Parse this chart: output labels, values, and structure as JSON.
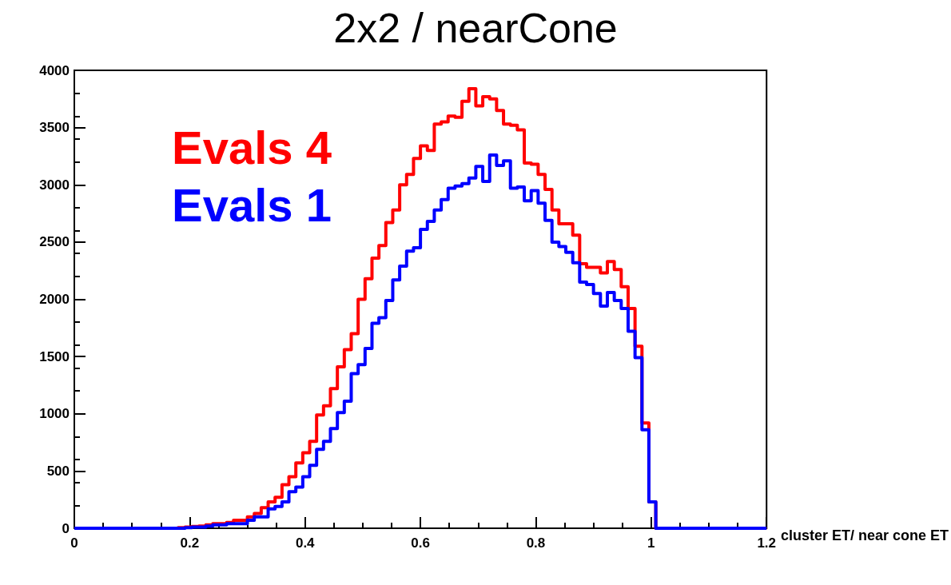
{
  "chart_data": {
    "type": "histogram",
    "title": "2x2 / nearCone",
    "xlabel": "cluster ET/ near cone ET",
    "bins": [
      0,
      0.012,
      0.024,
      0.036,
      0.048,
      0.06,
      0.072,
      0.084,
      0.096,
      0.108,
      0.12,
      0.132,
      0.144,
      0.156,
      0.168,
      0.18,
      0.192,
      0.204,
      0.216,
      0.228,
      0.24,
      0.252,
      0.264,
      0.276,
      0.288,
      0.3,
      0.312,
      0.324,
      0.336,
      0.348,
      0.36,
      0.372,
      0.384,
      0.396,
      0.408,
      0.42,
      0.432,
      0.444,
      0.456,
      0.468,
      0.48,
      0.492,
      0.504,
      0.516,
      0.528,
      0.54,
      0.552,
      0.564,
      0.576,
      0.588,
      0.6,
      0.612,
      0.624,
      0.636,
      0.648,
      0.66,
      0.672,
      0.684,
      0.696,
      0.708,
      0.72,
      0.732,
      0.744,
      0.756,
      0.768,
      0.78,
      0.792,
      0.804,
      0.816,
      0.828,
      0.84,
      0.852,
      0.864,
      0.876,
      0.888,
      0.9,
      0.912,
      0.924,
      0.936,
      0.948,
      0.96,
      0.972,
      0.984,
      0.996,
      1.008,
      1.02,
      1.032,
      1.044,
      1.056,
      1.068,
      1.08,
      1.092,
      1.104,
      1.116,
      1.128,
      1.14,
      1.152,
      1.164,
      1.176,
      1.188,
      1.2
    ],
    "series": [
      {
        "name": "Evals 4",
        "color": "#ff0000",
        "values": [
          0,
          0,
          0,
          0,
          0,
          0,
          0,
          0,
          0,
          0,
          0,
          0,
          0,
          0,
          0,
          5,
          10,
          15,
          20,
          30,
          40,
          40,
          50,
          70,
          70,
          100,
          130,
          180,
          230,
          270,
          380,
          450,
          570,
          660,
          760,
          990,
          1070,
          1220,
          1410,
          1560,
          1700,
          2000,
          2180,
          2360,
          2470,
          2670,
          2780,
          3000,
          3090,
          3230,
          3340,
          3300,
          3530,
          3550,
          3600,
          3590,
          3730,
          3840,
          3690,
          3770,
          3750,
          3650,
          3530,
          3520,
          3480,
          3190,
          3180,
          3090,
          2960,
          2780,
          2660,
          2660,
          2560,
          2310,
          2280,
          2280,
          2230,
          2330,
          2260,
          2110,
          1920,
          1590,
          920,
          230,
          0,
          0,
          0,
          0,
          0,
          0,
          0,
          0,
          0,
          0,
          0,
          0,
          0,
          0,
          0,
          0
        ]
      },
      {
        "name": "Evals 1",
        "color": "#0000ff",
        "values": [
          0,
          0,
          0,
          0,
          0,
          0,
          0,
          0,
          0,
          0,
          0,
          0,
          0,
          0,
          0,
          0,
          5,
          10,
          10,
          20,
          30,
          30,
          40,
          40,
          40,
          70,
          100,
          100,
          170,
          190,
          230,
          320,
          360,
          450,
          550,
          690,
          760,
          870,
          1010,
          1110,
          1350,
          1430,
          1570,
          1790,
          1840,
          1990,
          2170,
          2290,
          2420,
          2450,
          2610,
          2680,
          2780,
          2870,
          2970,
          2990,
          3010,
          3060,
          3160,
          3030,
          3260,
          3170,
          3210,
          2970,
          2980,
          2860,
          2950,
          2840,
          2690,
          2500,
          2460,
          2410,
          2320,
          2150,
          2130,
          2050,
          1940,
          2060,
          1990,
          1920,
          1720,
          1490,
          860,
          230,
          0,
          0,
          0,
          0,
          0,
          0,
          0,
          0,
          0,
          0,
          0,
          0,
          0,
          0,
          0,
          0
        ]
      }
    ],
    "xlim": [
      0,
      1.2
    ],
    "xticks": [
      0,
      0.2,
      0.4,
      0.6,
      0.8,
      1,
      1.2
    ],
    "ylim": [
      0,
      4000
    ],
    "yticks": [
      0,
      500,
      1000,
      1500,
      2000,
      2500,
      3000,
      3500,
      4000
    ],
    "legend": "top left",
    "marker": "none"
  }
}
